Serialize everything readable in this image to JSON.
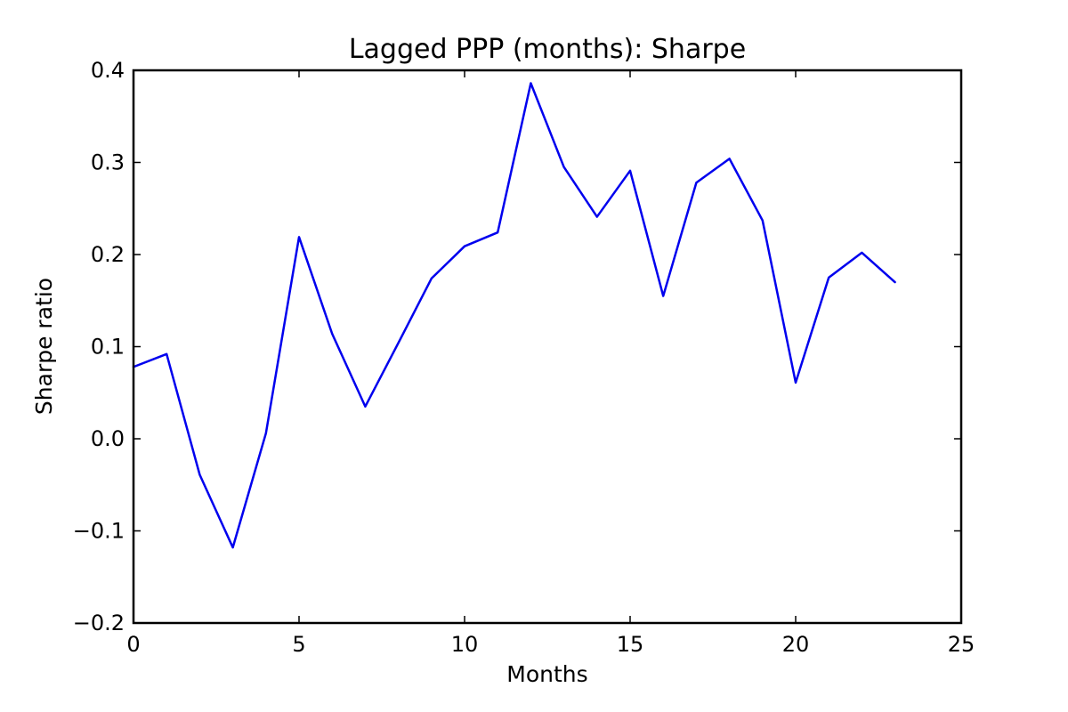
{
  "chart_data": {
    "type": "line",
    "title": "Lagged PPP (months): Sharpe",
    "xlabel": "Months",
    "ylabel": "Sharpe ratio",
    "xlim": [
      0,
      25
    ],
    "ylim": [
      -0.2,
      0.4
    ],
    "grid": false,
    "xticks": [
      "0",
      "5",
      "10",
      "15",
      "20",
      "25"
    ],
    "xtick_values": [
      0,
      5,
      10,
      15,
      20,
      25
    ],
    "yticks": [
      "−0.2",
      "−0.1",
      "0.0",
      "0.1",
      "0.2",
      "0.3",
      "0.4"
    ],
    "ytick_values": [
      -0.2,
      -0.1,
      0.0,
      0.1,
      0.2,
      0.3,
      0.4
    ],
    "series": [
      {
        "color": "#0000ee",
        "x": [
          0,
          1,
          2,
          3,
          4,
          5,
          6,
          7,
          8,
          9,
          10,
          11,
          12,
          13,
          14,
          15,
          16,
          17,
          18,
          19,
          20,
          21,
          22,
          23
        ],
        "y": [
          0.078,
          0.092,
          -0.039,
          -0.118,
          0.006,
          0.219,
          0.114,
          0.035,
          0.104,
          0.174,
          0.209,
          0.224,
          0.386,
          0.295,
          0.241,
          0.291,
          0.155,
          0.278,
          0.304,
          0.237,
          0.061,
          0.175,
          0.202,
          0.17
        ]
      }
    ]
  }
}
